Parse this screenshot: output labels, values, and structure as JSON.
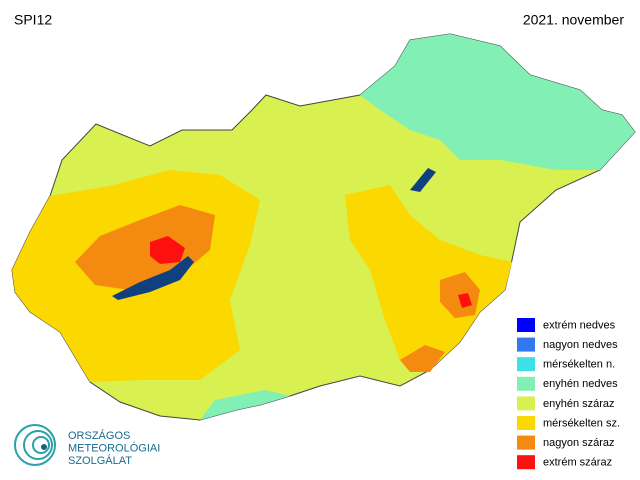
{
  "header": {
    "title": "SPI12",
    "date": "2021. november"
  },
  "legend": {
    "items": [
      {
        "label": "extrém nedves",
        "color": "#0000ff"
      },
      {
        "label": "nagyon nedves",
        "color": "#3478f0"
      },
      {
        "label": "mérsékelten n.",
        "color": "#3ee0e8"
      },
      {
        "label": "enyhén nedves",
        "color": "#82f0b4"
      },
      {
        "label": "enyhén száraz",
        "color": "#d8f050"
      },
      {
        "label": "mérsékelten sz.",
        "color": "#fad800"
      },
      {
        "label": "nagyon száraz",
        "color": "#f58a10"
      },
      {
        "label": "extrém száraz",
        "color": "#ff1010"
      }
    ]
  },
  "logo": {
    "lines": [
      "ORSZÁGOS",
      "METEOROLÓGIAI",
      "SZOLGÁLAT"
    ]
  }
}
